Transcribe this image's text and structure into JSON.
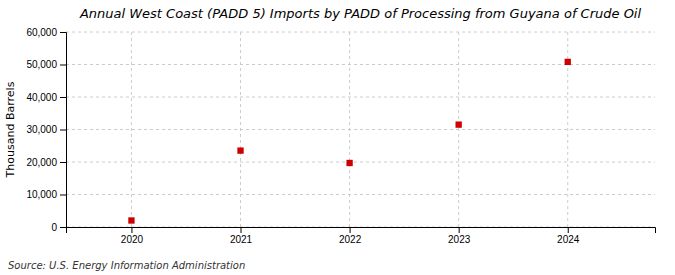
{
  "chart_data": {
    "type": "scatter",
    "title": "Annual West Coast (PADD 5) Imports by PADD of Processing from Guyana of Crude Oil",
    "ylabel": "Thousand Barrels",
    "annotations": [
      "Source: U.S. Energy Information Administration"
    ],
    "x": [
      2020,
      2021,
      2022,
      2023,
      2024
    ],
    "values": [
      2000,
      23500,
      19700,
      31500,
      50800
    ],
    "color": "#cc0000",
    "marker": "square",
    "xlim": [
      2019.4,
      2024.8
    ],
    "xticks": [
      2020,
      2021,
      2022,
      2023,
      2024
    ],
    "ylim": [
      0,
      60000
    ],
    "yticks": [
      0,
      {
        "value": 10000,
        "label": "10,000"
      },
      {
        "value": 20000,
        "label": "20,000"
      },
      {
        "value": 30000,
        "label": "30,000"
      },
      {
        "value": 40000,
        "label": "40,000"
      },
      {
        "value": 50000,
        "label": "50,000"
      },
      {
        "value": 60000,
        "label": "60,000"
      }
    ],
    "grid": true
  }
}
